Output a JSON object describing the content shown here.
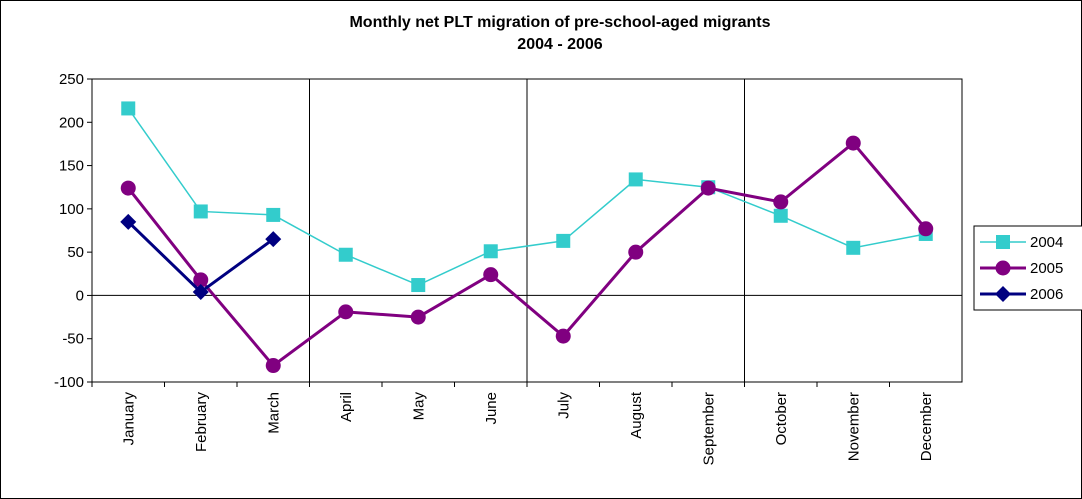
{
  "chart_data": {
    "type": "line",
    "title": "Monthly net PLT migration of pre-school-aged migrants",
    "subtitle": "2004 - 2006",
    "categories": [
      "January",
      "February",
      "March",
      "April",
      "May",
      "June",
      "July",
      "August",
      "September",
      "October",
      "November",
      "December"
    ],
    "series": [
      {
        "name": "2004",
        "color": "#33cccc",
        "marker": "square",
        "values": [
          216,
          97,
          93,
          47,
          12,
          51,
          63,
          134,
          125,
          92,
          55,
          71
        ]
      },
      {
        "name": "2005",
        "color": "#800080",
        "marker": "circle",
        "values": [
          124,
          18,
          -81,
          -19,
          -25,
          24,
          -47,
          50,
          124,
          108,
          176,
          77
        ]
      },
      {
        "name": "2006",
        "color": "#000080",
        "marker": "diamond",
        "values": [
          85,
          4,
          65,
          null,
          null,
          null,
          null,
          null,
          null,
          null,
          null,
          null
        ]
      }
    ],
    "ylim": [
      -100,
      250
    ],
    "yticks": [
      -100,
      -50,
      0,
      50,
      100,
      150,
      200,
      250
    ],
    "grid": false,
    "legend": "right"
  }
}
